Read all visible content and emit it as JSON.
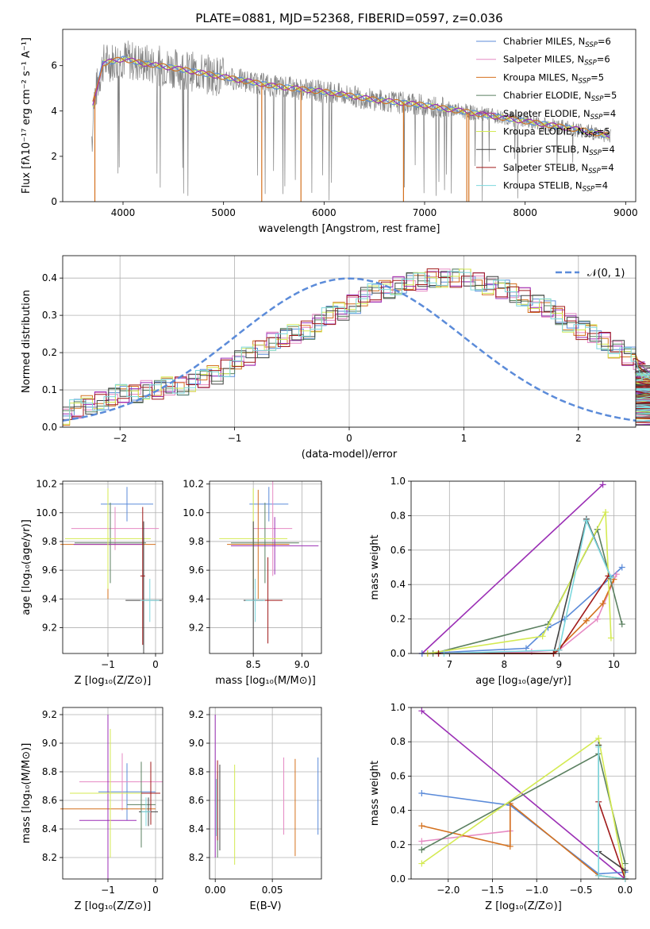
{
  "figure_title": "PLATE=0881, MJD=52368, FIBERID=0597, z=0.036",
  "legend_series": [
    {
      "label": "Chabrier MILES, N",
      "sub": "SSP",
      "suffix": "=6",
      "color": "#5b8bd9"
    },
    {
      "label": "Salpeter MILES, N",
      "sub": "SSP",
      "suffix": "=6",
      "color": "#e68ac3"
    },
    {
      "label": "Kroupa MILES, N",
      "sub": "SSP",
      "suffix": "=5",
      "color": "#d4711e"
    },
    {
      "label": "Chabrier ELODIE, N",
      "sub": "SSP",
      "suffix": "=5",
      "color": "#5b8060"
    },
    {
      "label": "Salpeter ELODIE, N",
      "sub": "SSP",
      "suffix": "=4",
      "color": "#9b2fb5"
    },
    {
      "label": "Kroupa ELODIE, N",
      "sub": "SSP",
      "suffix": "=5",
      "color": "#d4ea52"
    },
    {
      "label": "Chabrier STELIB, N",
      "sub": "SSP",
      "suffix": "=4",
      "color": "#444444"
    },
    {
      "label": "Salpeter STELIB, N",
      "sub": "SSP",
      "suffix": "=4",
      "color": "#a01a1a"
    },
    {
      "label": "Kroupa STELIB, N",
      "sub": "SSP",
      "suffix": "=4",
      "color": "#7dd8de"
    }
  ],
  "chart_data": [
    {
      "type": "line",
      "xlabel": "wavelength [Angstrom, rest frame]",
      "ylabel": "Flux [fλ10⁻¹⁷ erg cm⁻² s⁻¹ A⁻¹]",
      "xlim": [
        3400,
        9100
      ],
      "ylim": [
        0,
        7.6
      ],
      "xticks": [
        4000,
        5000,
        6000,
        7000,
        8000,
        9000
      ],
      "yticks": [
        0,
        2,
        4,
        6
      ],
      "grid": false,
      "legend_position": "top-right",
      "continuum": {
        "x": [
          3700,
          3800,
          4000,
          4200,
          4500,
          5000,
          5500,
          6000,
          6500,
          7000,
          7500,
          8000,
          8500,
          8850
        ],
        "y": [
          4.3,
          6.1,
          6.3,
          6.1,
          5.9,
          5.5,
          5.1,
          4.85,
          4.5,
          4.25,
          3.9,
          3.55,
          3.2,
          2.9
        ]
      }
    },
    {
      "type": "histogram",
      "xlabel": "(data-model)/error",
      "ylabel": "Normed distribution",
      "xlim": [
        -2.5,
        2.5
      ],
      "ylim": [
        0,
        0.46
      ],
      "xticks": [
        -2,
        -1,
        0,
        1,
        2
      ],
      "yticks": [
        0.0,
        0.1,
        0.2,
        0.3,
        0.4
      ],
      "grid": true,
      "legend": "𝒩(0, 1)",
      "legend_position": "top-right",
      "bin_width": 0.1,
      "values": [
        0.03,
        0.05,
        0.06,
        0.07,
        0.08,
        0.09,
        0.09,
        0.1,
        0.1,
        0.11,
        0.11,
        0.12,
        0.13,
        0.14,
        0.16,
        0.18,
        0.19,
        0.21,
        0.23,
        0.24,
        0.25,
        0.26,
        0.28,
        0.3,
        0.31,
        0.33,
        0.35,
        0.36,
        0.37,
        0.38,
        0.39,
        0.39,
        0.4,
        0.4,
        0.4,
        0.4,
        0.39,
        0.38,
        0.37,
        0.36,
        0.35,
        0.33,
        0.32,
        0.3,
        0.28,
        0.26,
        0.25,
        0.23,
        0.21,
        0.19,
        0.17,
        0.15,
        0.14,
        0.12,
        0.11,
        0.1,
        0.09,
        0.08,
        0.07,
        0.06,
        0.05,
        0.05,
        0.04,
        0.04,
        0.03,
        0.03
      ]
    },
    {
      "type": "scatter",
      "xlabel": "Z [log₁₀(Z/Z⊙)]",
      "ylabel": "age  [log₁₀(age/yr)]",
      "xlim": [
        -1.95,
        0.15
      ],
      "ylim": [
        9.02,
        10.22
      ],
      "xticks": [
        -1,
        0
      ],
      "yticks": [
        9.2,
        9.4,
        9.6,
        9.8,
        10.0,
        10.2
      ],
      "grid": true,
      "points": [
        {
          "s": 0,
          "x": -0.6,
          "xe": 0.55,
          "y": 10.06,
          "ye": 0.12
        },
        {
          "s": 1,
          "x": -0.85,
          "xe": 0.92,
          "y": 9.89,
          "ye": 0.15
        },
        {
          "s": 2,
          "x": -1.0,
          "xe": 1.0,
          "y": 9.78,
          "ye": 0.38
        },
        {
          "s": 3,
          "x": -0.95,
          "xe": 0.75,
          "y": 9.79,
          "ye": 0.28
        },
        {
          "s": 4,
          "x": -1.0,
          "xe": 0.72,
          "y": 9.78,
          "ye": 0.2
        },
        {
          "s": 5,
          "x": -1.0,
          "xe": 0.9,
          "y": 9.82,
          "ye": 0.35
        },
        {
          "s": 6,
          "x": -0.25,
          "xe": 0.38,
          "y": 9.39,
          "ye": 0.55
        },
        {
          "s": 7,
          "x": -0.27,
          "xe": 0.05,
          "y": 9.56,
          "ye": 0.48
        },
        {
          "s": 8,
          "x": -0.12,
          "xe": 0.2,
          "y": 9.39,
          "ye": 0.15
        }
      ]
    },
    {
      "type": "scatter",
      "xlabel": "mass [log₁₀(M/M⊙)]",
      "ylabel": "",
      "xlim": [
        8.05,
        9.2
      ],
      "ylim": [
        9.02,
        10.22
      ],
      "xticks": [
        8.5,
        9.0
      ],
      "yticks": [
        9.2,
        9.4,
        9.6,
        9.8,
        10.0,
        10.2
      ],
      "grid": true,
      "points": [
        {
          "s": 0,
          "x": 8.66,
          "xe": 0.2,
          "y": 10.06,
          "ye": 0.12
        },
        {
          "s": 1,
          "x": 8.7,
          "xe": 0.2,
          "y": 9.89,
          "ye": 0.33
        },
        {
          "s": 2,
          "x": 8.55,
          "xe": 0.32,
          "y": 9.78,
          "ye": 0.38
        },
        {
          "s": 3,
          "x": 8.62,
          "xe": 0.35,
          "y": 9.79,
          "ye": 0.28
        },
        {
          "s": 4,
          "x": 8.72,
          "xe": 0.45,
          "y": 9.77,
          "ye": 0.2
        },
        {
          "s": 5,
          "x": 8.5,
          "xe": 0.35,
          "y": 9.82,
          "ye": 0.35
        },
        {
          "s": 6,
          "x": 8.5,
          "xe": 0.1,
          "y": 9.39,
          "ye": 0.55
        },
        {
          "s": 7,
          "x": 8.65,
          "xe": 0.15,
          "y": 9.39,
          "ye": 0.3
        },
        {
          "s": 8,
          "x": 8.52,
          "xe": 0.1,
          "y": 9.39,
          "ye": 0.15
        }
      ]
    },
    {
      "type": "line",
      "xlabel": "age  [log₁₀(age/yr)]",
      "ylabel": "mass weight",
      "xlim": [
        6.3,
        10.4
      ],
      "ylim": [
        0,
        1.0
      ],
      "xticks": [
        7,
        8,
        9,
        10
      ],
      "yticks": [
        0.0,
        0.2,
        0.4,
        0.6,
        0.8,
        1.0
      ],
      "grid": true,
      "series": [
        {
          "s": 4,
          "x": [
            6.5,
            9.8
          ],
          "y": [
            0.0,
            0.98
          ]
        },
        {
          "s": 0,
          "x": [
            6.5,
            8.4,
            8.8,
            9.1,
            10.15
          ],
          "y": [
            0.0,
            0.03,
            0.15,
            0.2,
            0.5
          ]
        },
        {
          "s": 1,
          "x": [
            6.6,
            8.5,
            9.0,
            9.7,
            10.05
          ],
          "y": [
            0.0,
            0.01,
            0.02,
            0.2,
            0.46
          ]
        },
        {
          "s": 2,
          "x": [
            6.6,
            8.9,
            9.5,
            9.8,
            10.0
          ],
          "y": [
            0.0,
            0.0,
            0.19,
            0.29,
            0.43
          ]
        },
        {
          "s": 3,
          "x": [
            6.7,
            8.8,
            9.7,
            10.15
          ],
          "y": [
            0.0,
            0.17,
            0.72,
            0.17
          ]
        },
        {
          "s": 5,
          "x": [
            6.6,
            8.7,
            9.85,
            9.95
          ],
          "y": [
            0.0,
            0.1,
            0.82,
            0.09
          ]
        },
        {
          "s": 6,
          "x": [
            6.8,
            8.9,
            9.5,
            9.95
          ],
          "y": [
            0.0,
            0.0,
            0.78,
            0.44
          ]
        },
        {
          "s": 7,
          "x": [
            6.8,
            8.9,
            9.0,
            9.9
          ],
          "y": [
            0.0,
            0.0,
            0.02,
            0.45
          ]
        },
        {
          "s": 8,
          "x": [
            6.9,
            9.0,
            9.5,
            9.95
          ],
          "y": [
            0.0,
            0.02,
            0.77,
            0.44
          ]
        }
      ]
    },
    {
      "type": "scatter",
      "xlabel": "Z [log₁₀(Z/Z⊙)]",
      "ylabel": "mass [log₁₀(M/M⊙)]",
      "xlim": [
        -1.95,
        0.15
      ],
      "ylim": [
        8.05,
        9.25
      ],
      "xticks": [
        -1,
        0
      ],
      "yticks": [
        8.2,
        8.4,
        8.6,
        8.8,
        9.0,
        9.2
      ],
      "grid": true,
      "points": [
        {
          "s": 0,
          "x": -0.6,
          "xe": 0.6,
          "y": 8.66,
          "ye": 0.2
        },
        {
          "s": 1,
          "x": -0.7,
          "xe": 0.9,
          "y": 8.73,
          "ye": 0.2
        },
        {
          "s": 2,
          "x": -1.0,
          "xe": 1.0,
          "y": 8.54,
          "ye": 0.33
        },
        {
          "s": 3,
          "x": -0.3,
          "xe": 0.3,
          "y": 8.57,
          "ye": 0.3
        },
        {
          "s": 4,
          "x": -1.0,
          "xe": 0.6,
          "y": 8.46,
          "ye": 0.74
        },
        {
          "s": 5,
          "x": -0.95,
          "xe": 0.85,
          "y": 8.65,
          "ye": 0.45
        },
        {
          "s": 6,
          "x": -0.15,
          "xe": 0.2,
          "y": 8.52,
          "ye": 0.1
        },
        {
          "s": 7,
          "x": -0.1,
          "xe": 0.2,
          "y": 8.65,
          "ye": 0.22
        },
        {
          "s": 8,
          "x": -0.2,
          "xe": 0.1,
          "y": 8.52,
          "ye": 0.1
        }
      ]
    },
    {
      "type": "scatter",
      "xlabel": "E(B-V)",
      "ylabel": "",
      "xlim": [
        -0.005,
        0.093
      ],
      "ylim": [
        8.05,
        9.25
      ],
      "xticks": [
        0.0,
        0.05
      ],
      "yticks": [
        8.2,
        8.4,
        8.6,
        8.8,
        9.0,
        9.2
      ],
      "grid": true,
      "points": [
        {
          "s": 0,
          "x": 0.09,
          "y": 8.63,
          "ye": 0.27
        },
        {
          "s": 1,
          "x": 0.06,
          "y": 8.63,
          "ye": 0.27
        },
        {
          "s": 2,
          "x": 0.07,
          "y": 8.55,
          "ye": 0.34
        },
        {
          "s": 3,
          "x": 0.002,
          "y": 8.5,
          "ye": 0.3
        },
        {
          "s": 4,
          "x": 0.0,
          "y": 8.7,
          "ye": 0.5
        },
        {
          "s": 5,
          "x": 0.017,
          "y": 8.5,
          "ye": 0.35
        },
        {
          "s": 6,
          "x": 0.004,
          "y": 8.55,
          "ye": 0.3
        },
        {
          "s": 7,
          "x": 0.002,
          "y": 8.6,
          "ye": 0.28
        },
        {
          "s": 8,
          "x": 0.001,
          "y": 8.55,
          "ye": 0.2
        }
      ]
    },
    {
      "type": "line",
      "xlabel": "Z [log₁₀(Z/Z⊙)]",
      "ylabel": "mass weight",
      "xlim": [
        -2.42,
        0.12
      ],
      "ylim": [
        0,
        1.0
      ],
      "xticks": [
        -2.0,
        -1.5,
        -1.0,
        -0.5,
        0.0
      ],
      "yticks": [
        0.0,
        0.2,
        0.4,
        0.6,
        0.8,
        1.0
      ],
      "grid": true,
      "series": [
        {
          "s": 4,
          "x": [
            -2.3,
            0.0
          ],
          "y": [
            0.98,
            0.0
          ]
        },
        {
          "s": 0,
          "x": [
            -2.3,
            -1.3,
            -0.3,
            0.0
          ],
          "y": [
            0.5,
            0.43,
            0.03,
            0.04
          ]
        },
        {
          "s": 1,
          "x": [
            -2.3,
            -1.3,
            -1.3
          ],
          "y": [
            0.22,
            0.28,
            0.44
          ]
        },
        {
          "s": 2,
          "x": [
            -2.3,
            -1.3,
            -1.3,
            -0.3,
            0.0
          ],
          "y": [
            0.31,
            0.19,
            0.44,
            0.02,
            0.0
          ]
        },
        {
          "s": 3,
          "x": [
            -2.3,
            -0.3,
            0.0
          ],
          "y": [
            0.17,
            0.73,
            0.09
          ]
        },
        {
          "s": 5,
          "x": [
            -2.3,
            -0.3,
            0.0
          ],
          "y": [
            0.09,
            0.82,
            0.0
          ]
        },
        {
          "s": 6,
          "x": [
            -0.3,
            -0.3,
            0.0
          ],
          "y": [
            0.78,
            0.16,
            0.05
          ]
        },
        {
          "s": 7,
          "x": [
            -0.3,
            0.0
          ],
          "y": [
            0.45,
            0.0
          ]
        },
        {
          "s": 8,
          "x": [
            -0.3,
            -0.3,
            0.0
          ],
          "y": [
            0.77,
            0.02,
            0.0
          ]
        }
      ]
    }
  ]
}
